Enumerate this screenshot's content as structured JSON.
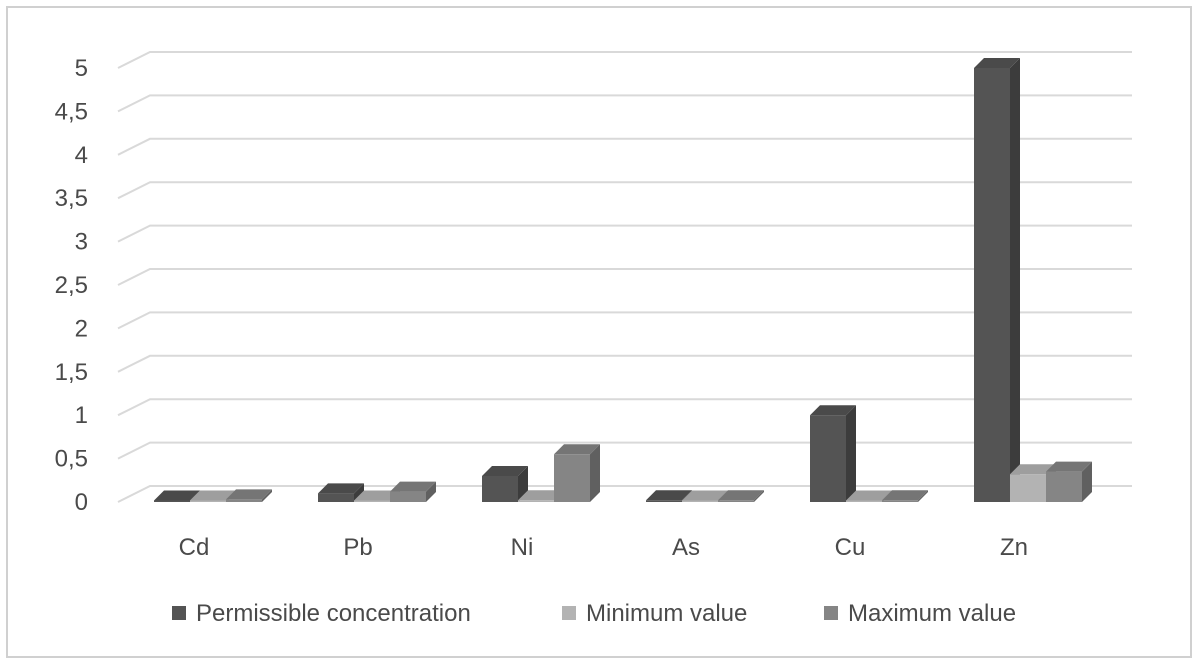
{
  "chart_data": {
    "type": "bar",
    "title": "",
    "xlabel": "",
    "ylabel": "",
    "ylim": [
      0,
      5
    ],
    "yticks": [
      "0",
      "0,5",
      "1",
      "1,5",
      "2",
      "2,5",
      "3",
      "3,5",
      "4",
      "4,5",
      "5"
    ],
    "categories": [
      "Cd",
      "Pb",
      "Ni",
      "As",
      "Cu",
      "Zn"
    ],
    "series": [
      {
        "name": "Permissible concentration",
        "color": "#545454",
        "values": [
          0.01,
          0.1,
          0.3,
          0.02,
          1.0,
          5.0
        ]
      },
      {
        "name": "Minimum value",
        "color": "#b3b3b3",
        "values": [
          0.003,
          0.01,
          0.02,
          0.005,
          0.005,
          0.32
        ]
      },
      {
        "name": "Maximum value",
        "color": "#858585",
        "values": [
          0.03,
          0.12,
          0.55,
          0.02,
          0.02,
          0.35
        ]
      }
    ],
    "grid": true,
    "legend": "bottom"
  }
}
